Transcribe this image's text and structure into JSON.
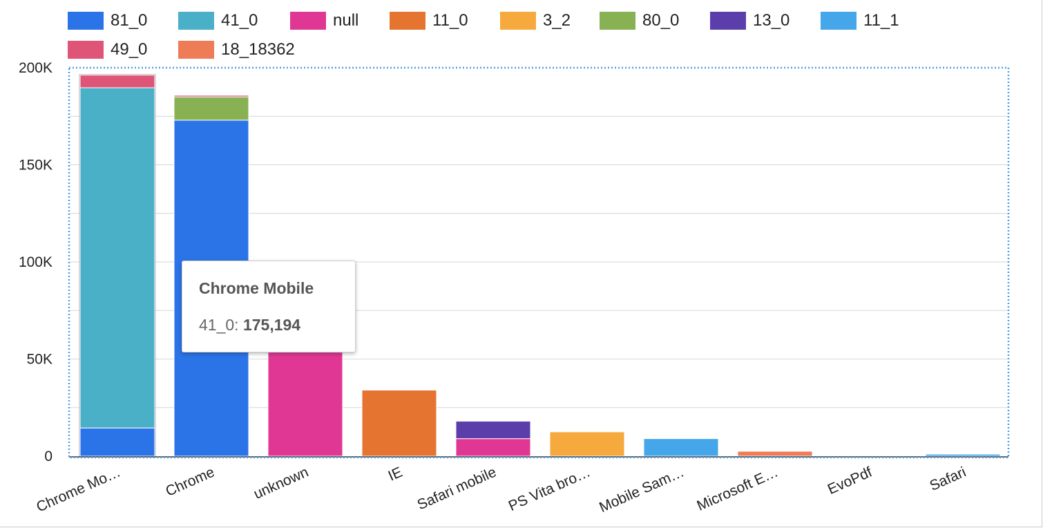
{
  "chart_data": {
    "type": "bar",
    "stacked": true,
    "categories": [
      "Chrome Mo…",
      "Chrome",
      "unknown",
      "IE",
      "Safari mobile",
      "PS Vita bro…",
      "Mobile Sam…",
      "Microsoft E…",
      "EvoPdf",
      "Safari"
    ],
    "series": [
      {
        "name": "81_0",
        "color": "#2b74e8",
        "values": [
          14500,
          173000,
          0,
          0,
          0,
          0,
          0,
          0,
          0,
          0
        ]
      },
      {
        "name": "41_0",
        "color": "#4ab0c7",
        "values": [
          175194,
          0,
          0,
          0,
          0,
          0,
          0,
          0,
          0,
          0
        ]
      },
      {
        "name": "null",
        "color": "#e03795",
        "values": [
          0,
          0,
          53500,
          0,
          9000,
          0,
          0,
          0,
          0,
          0
        ]
      },
      {
        "name": "11_0",
        "color": "#e67431",
        "values": [
          0,
          0,
          0,
          34000,
          0,
          0,
          0,
          0,
          0,
          0
        ]
      },
      {
        "name": "3_2",
        "color": "#f6a93d",
        "values": [
          0,
          0,
          0,
          0,
          0,
          12500,
          0,
          0,
          0,
          0
        ]
      },
      {
        "name": "80_0",
        "color": "#88b153",
        "values": [
          0,
          12000,
          0,
          0,
          0,
          0,
          0,
          0,
          0,
          0
        ]
      },
      {
        "name": "13_0",
        "color": "#5c3eab",
        "values": [
          0,
          0,
          0,
          0,
          9000,
          0,
          0,
          0,
          0,
          0
        ]
      },
      {
        "name": "11_1",
        "color": "#46a6ea",
        "values": [
          0,
          0,
          0,
          0,
          0,
          0,
          9000,
          0,
          0,
          1000
        ]
      },
      {
        "name": "49_0",
        "color": "#df5578",
        "values": [
          6500,
          800,
          0,
          0,
          0,
          0,
          0,
          0,
          0,
          0
        ]
      },
      {
        "name": "18_18362",
        "color": "#ee7c56",
        "values": [
          0,
          0,
          0,
          0,
          0,
          0,
          0,
          2500,
          0,
          0
        ]
      }
    ],
    "y_ticks": [
      "0",
      "50K",
      "100K",
      "150K",
      "200K"
    ],
    "ylim": [
      0,
      200000
    ],
    "grid": true,
    "legend_position": "top"
  },
  "tooltip": {
    "title": "Chrome Mobile",
    "series_label": "41_0:",
    "value": "175,194"
  }
}
